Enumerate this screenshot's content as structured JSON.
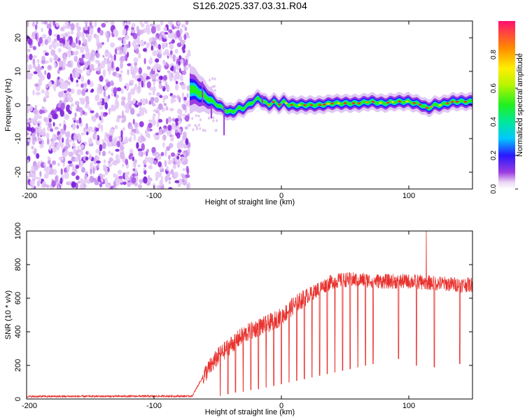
{
  "title": "S126.2025.337.03.31.R04",
  "chart_data": [
    {
      "type": "heatmap",
      "name": "spectrogram",
      "xlabel": "Height of straight line (km)",
      "ylabel": "Frequency (Hz)",
      "xlim": [
        -200,
        150
      ],
      "ylim": [
        -25,
        25
      ],
      "xticks": [
        -200,
        -100,
        0,
        100
      ],
      "yticks": [
        -20,
        -10,
        0,
        10,
        20
      ],
      "colorbar": {
        "label": "Normalized spectral amplitude",
        "range": [
          0,
          1
        ],
        "ticks": [
          0.0,
          0.2,
          0.4,
          0.6,
          0.8
        ],
        "tick_labels": [
          "0.0",
          "0.2",
          "0.4",
          "0.6",
          "0.8"
        ]
      },
      "noise_region_x": [
        -200,
        -70
      ],
      "signal_track": {
        "x": [
          -72,
          -66,
          -62,
          -58,
          -54,
          -50,
          -46,
          -42,
          -38,
          -34,
          -30,
          -26,
          -22,
          -18,
          -14,
          -10,
          -6,
          -2,
          2,
          6,
          10,
          20,
          30,
          40,
          50,
          60,
          70,
          80,
          90,
          100,
          105,
          110,
          115,
          120,
          125,
          130,
          135,
          140,
          150
        ],
        "freq": [
          5,
          4,
          3,
          2,
          1,
          0,
          -1,
          -2,
          -2,
          -1,
          -1,
          0,
          1,
          2,
          1,
          0,
          1,
          0,
          1,
          0,
          0,
          0,
          0,
          0.5,
          0.5,
          0.5,
          1,
          0.5,
          1,
          1,
          0.5,
          0,
          -1,
          0,
          0,
          0.5,
          1,
          1,
          1
        ]
      }
    },
    {
      "type": "line",
      "name": "snr",
      "xlabel": "Height of straight line (km)",
      "ylabel": "SNR (10 * v/v)",
      "xlim": [
        -200,
        150
      ],
      "ylim": [
        0,
        1000
      ],
      "xticks": [
        -200,
        -100,
        0,
        100
      ],
      "yticks": [
        0,
        200,
        400,
        600,
        800,
        1000
      ],
      "color": "#e8302c",
      "envelope": {
        "x": [
          -200,
          -70,
          -60,
          -50,
          -40,
          -30,
          -20,
          -10,
          0,
          10,
          20,
          30,
          40,
          50,
          60,
          80,
          100,
          120,
          140,
          150
        ],
        "y": [
          10,
          12,
          150,
          250,
          320,
          380,
          420,
          450,
          490,
          560,
          610,
          660,
          700,
          710,
          710,
          700,
          700,
          690,
          680,
          680
        ]
      },
      "dropouts": {
        "x": [
          -48,
          -42,
          -36,
          -30,
          -24,
          -18,
          -12,
          -6,
          0,
          6,
          12,
          18,
          24,
          30,
          36,
          42,
          48,
          54,
          60,
          66,
          72,
          92,
          106,
          120,
          140
        ],
        "y": [
          20,
          30,
          40,
          45,
          55,
          60,
          70,
          80,
          90,
          100,
          110,
          120,
          130,
          140,
          150,
          160,
          170,
          180,
          190,
          200,
          210,
          240,
          200,
          190,
          210
        ]
      }
    }
  ]
}
